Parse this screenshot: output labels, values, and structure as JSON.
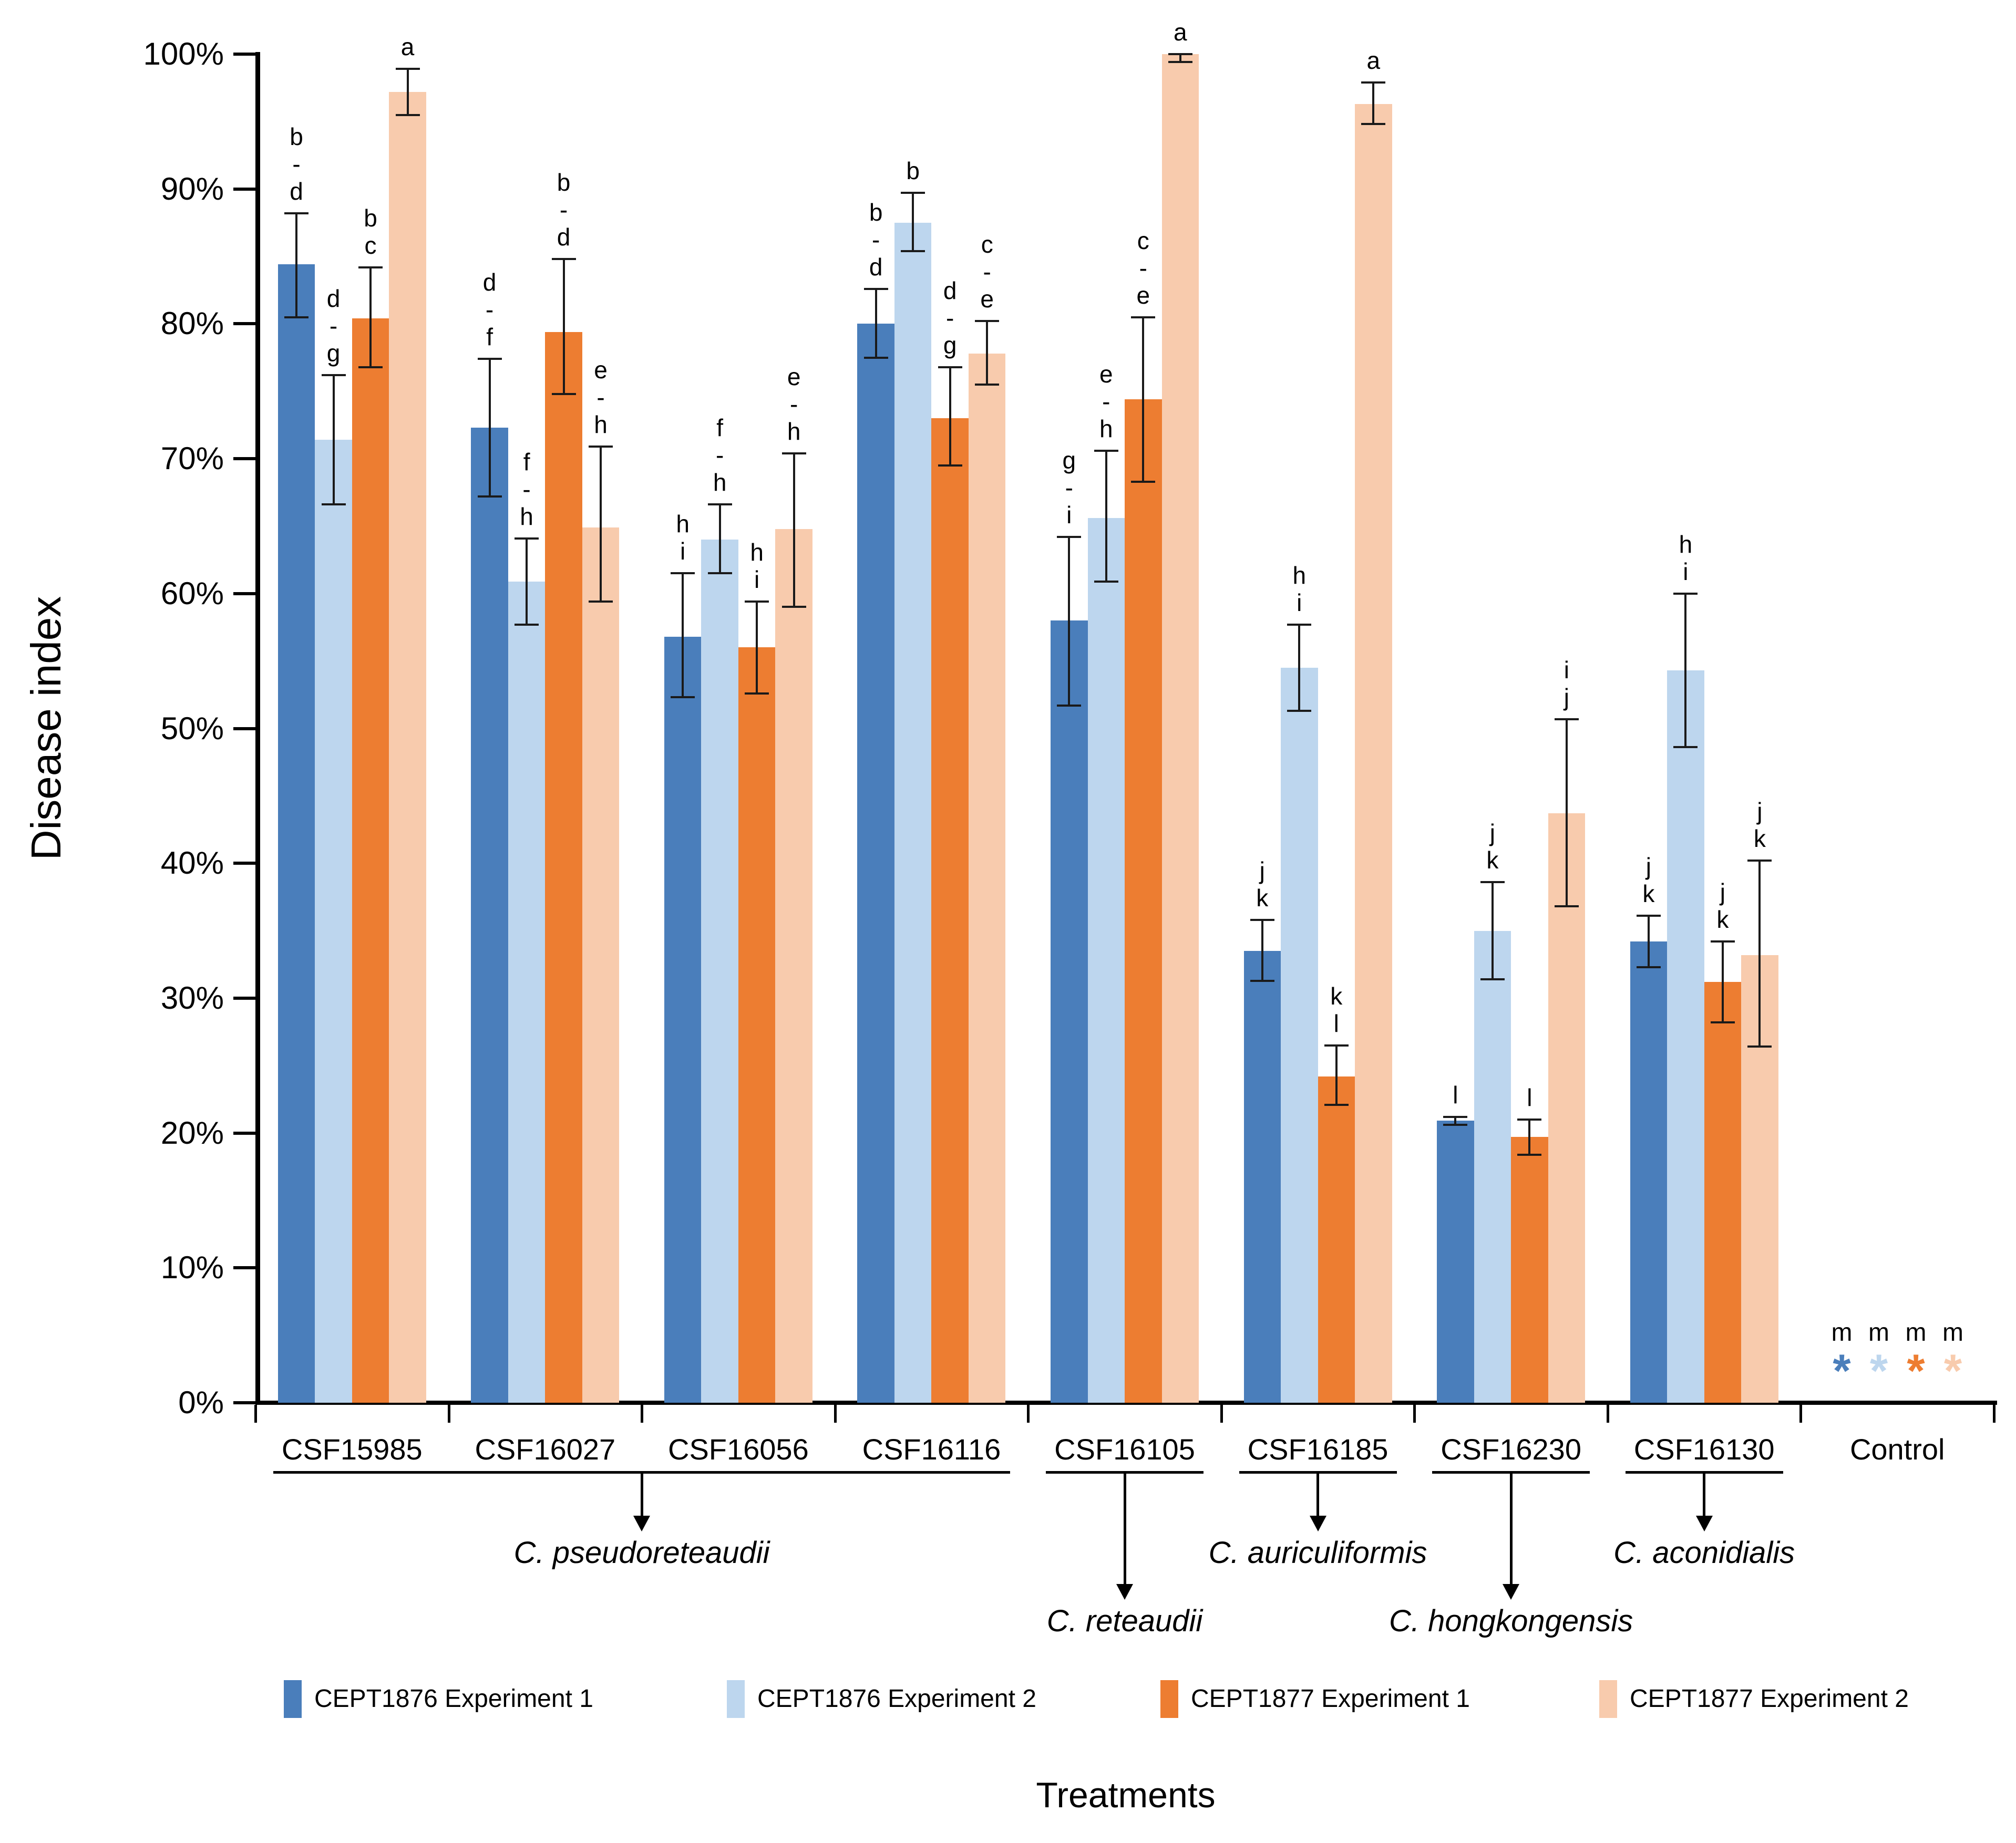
{
  "chart_data": {
    "type": "bar",
    "title": "",
    "ylabel": "Disease index",
    "xlabel": "Treatments",
    "ylim": [
      0,
      100
    ],
    "grid": false,
    "legend_position": "bottom",
    "y_ticks": [
      {
        "label": "100%",
        "value": 100
      },
      {
        "label": "90%",
        "value": 90
      },
      {
        "label": "80%",
        "value": 80
      },
      {
        "label": "70%",
        "value": 70
      },
      {
        "label": "60%",
        "value": 60
      },
      {
        "label": "50%",
        "value": 50
      },
      {
        "label": "40%",
        "value": 40
      },
      {
        "label": "30%",
        "value": 30
      },
      {
        "label": "20%",
        "value": 20
      },
      {
        "label": "10%",
        "value": 10
      },
      {
        "label": "0%",
        "value": 0
      }
    ],
    "categories": [
      "CSF15985",
      "CSF16027",
      "CSF16056",
      "CSF16116",
      "CSF16105",
      "CSF16185",
      "CSF16230",
      "CSF16130",
      "Control"
    ],
    "series": [
      {
        "name": "CEPT1876 Experiment 1",
        "color": "#4A7EBB",
        "values": [
          84.4,
          72.3,
          56.8,
          80.0,
          58.0,
          33.5,
          20.9,
          34.2,
          null
        ],
        "err_low": [
          80.5,
          67.2,
          52.3,
          77.5,
          51.7,
          31.3,
          20.6,
          32.3,
          null
        ],
        "err_high": [
          88.2,
          77.4,
          61.5,
          82.6,
          64.2,
          35.8,
          21.2,
          36.1,
          null
        ],
        "letters": [
          [
            "b",
            "-",
            "d"
          ],
          [
            "d",
            "-",
            "f"
          ],
          [
            "h",
            "i"
          ],
          [
            "b",
            "-",
            "d"
          ],
          [
            "g",
            "-",
            "i"
          ],
          [
            "j",
            "k"
          ],
          [
            "l"
          ],
          [
            "j",
            "k"
          ],
          [
            "m"
          ]
        ]
      },
      {
        "name": "CEPT1876 Experiment 2",
        "color": "#BDD6EE",
        "values": [
          71.4,
          60.9,
          64.0,
          87.5,
          65.6,
          54.5,
          35.0,
          54.3,
          null
        ],
        "err_low": [
          66.6,
          57.7,
          61.5,
          85.4,
          60.9,
          51.3,
          31.4,
          48.6,
          null
        ],
        "err_high": [
          76.2,
          64.1,
          66.6,
          89.7,
          70.6,
          57.7,
          38.6,
          60.0,
          null
        ],
        "letters": [
          [
            "d",
            "-",
            "g"
          ],
          [
            "f",
            "-",
            "h"
          ],
          [
            "f",
            "-",
            "h"
          ],
          [
            "b"
          ],
          [
            "e",
            "-",
            "h"
          ],
          [
            "h",
            "i"
          ],
          [
            "j",
            "k"
          ],
          [
            "h",
            "i"
          ],
          [
            "m"
          ]
        ]
      },
      {
        "name": "CEPT1877 Experiment 1",
        "color": "#ED7D31",
        "values": [
          80.4,
          79.4,
          56.0,
          73.0,
          74.4,
          24.2,
          19.7,
          31.2,
          null
        ],
        "err_low": [
          76.8,
          74.8,
          52.6,
          69.5,
          68.3,
          22.1,
          18.4,
          28.2,
          null
        ],
        "err_high": [
          84.2,
          84.8,
          59.4,
          76.8,
          80.5,
          26.5,
          21.0,
          34.2,
          null
        ],
        "letters": [
          [
            "b",
            "c"
          ],
          [
            "b",
            "-",
            "d"
          ],
          [
            "h",
            "i"
          ],
          [
            "d",
            "-",
            "g"
          ],
          [
            "c",
            "-",
            "e"
          ],
          [
            "k",
            "l"
          ],
          [
            "l"
          ],
          [
            "j",
            "k"
          ],
          [
            "m"
          ]
        ]
      },
      {
        "name": "CEPT1877 Experiment 2",
        "color": "#F8CBAD",
        "values": [
          97.2,
          64.9,
          64.8,
          77.8,
          100.0,
          96.3,
          43.7,
          33.2,
          null
        ],
        "err_low": [
          95.5,
          59.4,
          59.0,
          75.5,
          99.4,
          94.8,
          36.8,
          26.4,
          null
        ],
        "err_high": [
          98.9,
          70.9,
          70.4,
          80.2,
          100.0,
          97.9,
          50.7,
          40.2,
          null
        ],
        "letters": [
          [
            "a"
          ],
          [
            "e",
            "-",
            "h"
          ],
          [
            "e",
            "-",
            "h"
          ],
          [
            "c",
            "-",
            "e"
          ],
          [
            "a"
          ],
          [
            "a"
          ],
          [
            "i",
            "j"
          ],
          [
            "j",
            "k"
          ],
          [
            "m"
          ]
        ]
      }
    ],
    "control": {
      "category": "Control",
      "marker_symbol": "*",
      "letter": "m",
      "marker_value": 2.7,
      "letter_value": 5.2
    },
    "species_groups": [
      {
        "label": "C. pseudoreteaudii",
        "from": 0,
        "to": 3,
        "arrow": "short"
      },
      {
        "label": "C. reteaudii",
        "from": 4,
        "to": 4,
        "arrow": "long"
      },
      {
        "label": "C. auriculiformis",
        "from": 5,
        "to": 5,
        "arrow": "short"
      },
      {
        "label": "C. hongkongensis",
        "from": 6,
        "to": 6,
        "arrow": "long"
      },
      {
        "label": "C. aconidialis",
        "from": 7,
        "to": 7,
        "arrow": "short"
      }
    ]
  }
}
